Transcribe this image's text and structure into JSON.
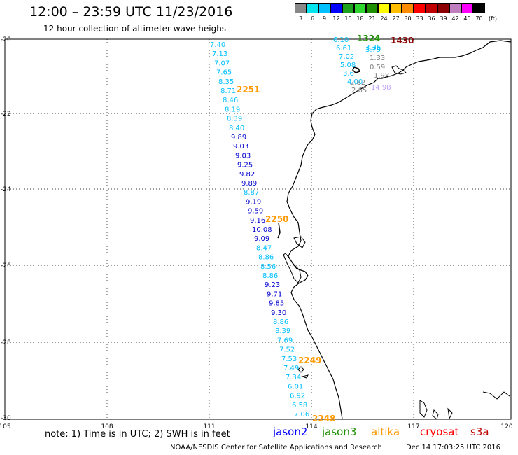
{
  "header": {
    "title": "12:00  –  23:59  UTC  11/23/2016",
    "subtitle": "12 hour collection of altimeter wave heighs"
  },
  "legend": {
    "colors": [
      "#888888",
      "#00e5ee",
      "#00c0ff",
      "#0000ff",
      "#1fa01f",
      "#2fd52f",
      "#1d8f00",
      "#ffff00",
      "#ffbf00",
      "#ff8c00",
      "#ff0000",
      "#c00000",
      "#8b0000",
      "#bf7fbf",
      "#ff00ff",
      "#000000"
    ],
    "labels": [
      "3",
      "6",
      "9",
      "12",
      "15",
      "18",
      "21",
      "24",
      "27",
      "30",
      "33",
      "36",
      "39",
      "42",
      "45",
      "70",
      "(ft)"
    ]
  },
  "axes": {
    "lon_labels": [
      "105",
      "108",
      "111",
      "114",
      "117",
      "120"
    ],
    "lat_labels": [
      "-20",
      "-22",
      "-24",
      "-26",
      "-28",
      "-30"
    ]
  },
  "swh_points": [
    {
      "v": "7.40",
      "c": "#00bfff"
    },
    {
      "v": "7.13",
      "c": "#00bfff"
    },
    {
      "v": "7.07",
      "c": "#00bfff"
    },
    {
      "v": "7.65",
      "c": "#00bfff"
    },
    {
      "v": "8.35",
      "c": "#00bfff"
    },
    {
      "v": "8.71",
      "c": "#00bfff"
    },
    {
      "v": "8.46",
      "c": "#00bfff"
    },
    {
      "v": "8.19",
      "c": "#00bfff"
    },
    {
      "v": "8.39",
      "c": "#00bfff"
    },
    {
      "v": "8.40",
      "c": "#00bfff"
    },
    {
      "v": "9.89",
      "c": "#0000cd"
    },
    {
      "v": "9.03",
      "c": "#0000cd"
    },
    {
      "v": "9.03",
      "c": "#0000cd"
    },
    {
      "v": "9.25",
      "c": "#0000cd"
    },
    {
      "v": "9.82",
      "c": "#0000cd"
    },
    {
      "v": "9.89",
      "c": "#0000cd"
    },
    {
      "v": "8.87",
      "c": "#00bfff"
    },
    {
      "v": "9.19",
      "c": "#0000cd"
    },
    {
      "v": "9.59",
      "c": "#0000cd"
    },
    {
      "v": "9.16",
      "c": "#0000cd"
    },
    {
      "v": "10.08",
      "c": "#0000cd"
    },
    {
      "v": "9.09",
      "c": "#0000cd"
    },
    {
      "v": "8.47",
      "c": "#00bfff"
    },
    {
      "v": "8.86",
      "c": "#00bfff"
    },
    {
      "v": "8.56",
      "c": "#00bfff"
    },
    {
      "v": "8.86",
      "c": "#00bfff"
    },
    {
      "v": "9.23",
      "c": "#0000cd"
    },
    {
      "v": "9.71",
      "c": "#0000cd"
    },
    {
      "v": "9.85",
      "c": "#0000cd"
    },
    {
      "v": "9.30",
      "c": "#0000cd"
    },
    {
      "v": "8.86",
      "c": "#00bfff"
    },
    {
      "v": "8.39",
      "c": "#00bfff"
    },
    {
      "v": "7.69",
      "c": "#00bfff"
    },
    {
      "v": "7.52",
      "c": "#00bfff"
    },
    {
      "v": "7.53",
      "c": "#00bfff"
    },
    {
      "v": "7.49",
      "c": "#00bfff"
    },
    {
      "v": "7.34",
      "c": "#00bfff"
    },
    {
      "v": "6.01",
      "c": "#00bfff"
    },
    {
      "v": "6.92",
      "c": "#00bfff"
    },
    {
      "v": "6.58",
      "c": "#00bfff"
    },
    {
      "v": "7.06",
      "c": "#00bfff"
    }
  ],
  "ne_points": [
    {
      "v": "6.10",
      "c": "#00bfff"
    },
    {
      "v": "1324",
      "c": "#1d8f00"
    },
    {
      "v": "3.36",
      "c": "#00bfff"
    },
    {
      "v": "1430",
      "c": "#8b0000"
    },
    {
      "v": "6.61",
      "c": "#00bfff"
    },
    {
      "v": "3.79",
      "c": "#00bfff"
    },
    {
      "v": "7.02",
      "c": "#00bfff"
    },
    {
      "v": "1.33",
      "c": "#808080"
    },
    {
      "v": "5.08",
      "c": "#00bfff"
    },
    {
      "v": "0.59",
      "c": "#808080"
    },
    {
      "v": "3.6",
      "c": "#00bfff"
    },
    {
      "v": "1.98",
      "c": "#808080"
    },
    {
      "v": "4.00",
      "c": "#00bfff"
    },
    {
      "v": "2.82",
      "c": "#808080"
    },
    {
      "v": "2.65",
      "c": "#808080"
    },
    {
      "v": "14.98",
      "c": "#bfa0ff"
    }
  ],
  "pass_times": [
    {
      "v": "2251",
      "c": "#ff9900"
    },
    {
      "v": "2250",
      "c": "#ff9900"
    },
    {
      "v": "2249",
      "c": "#ff9900"
    },
    {
      "v": "2248",
      "c": "#ff9900"
    }
  ],
  "footer": {
    "note": "note:  1) Time is in UTC;  2) SWH is in feet",
    "satellites": [
      {
        "name": "jason2",
        "color": "#0000ff"
      },
      {
        "name": "jason3",
        "color": "#1d8f00"
      },
      {
        "name": "altika",
        "color": "#ff9900"
      },
      {
        "name": "cryosat",
        "color": "#ff0000"
      },
      {
        "name": "s3a",
        "color": "#c00000"
      }
    ],
    "credit": "NOAA/NESDIS Center for Satellite Applications and Research",
    "timestamp": "Dec 14 17:03:25 UTC 2016"
  }
}
